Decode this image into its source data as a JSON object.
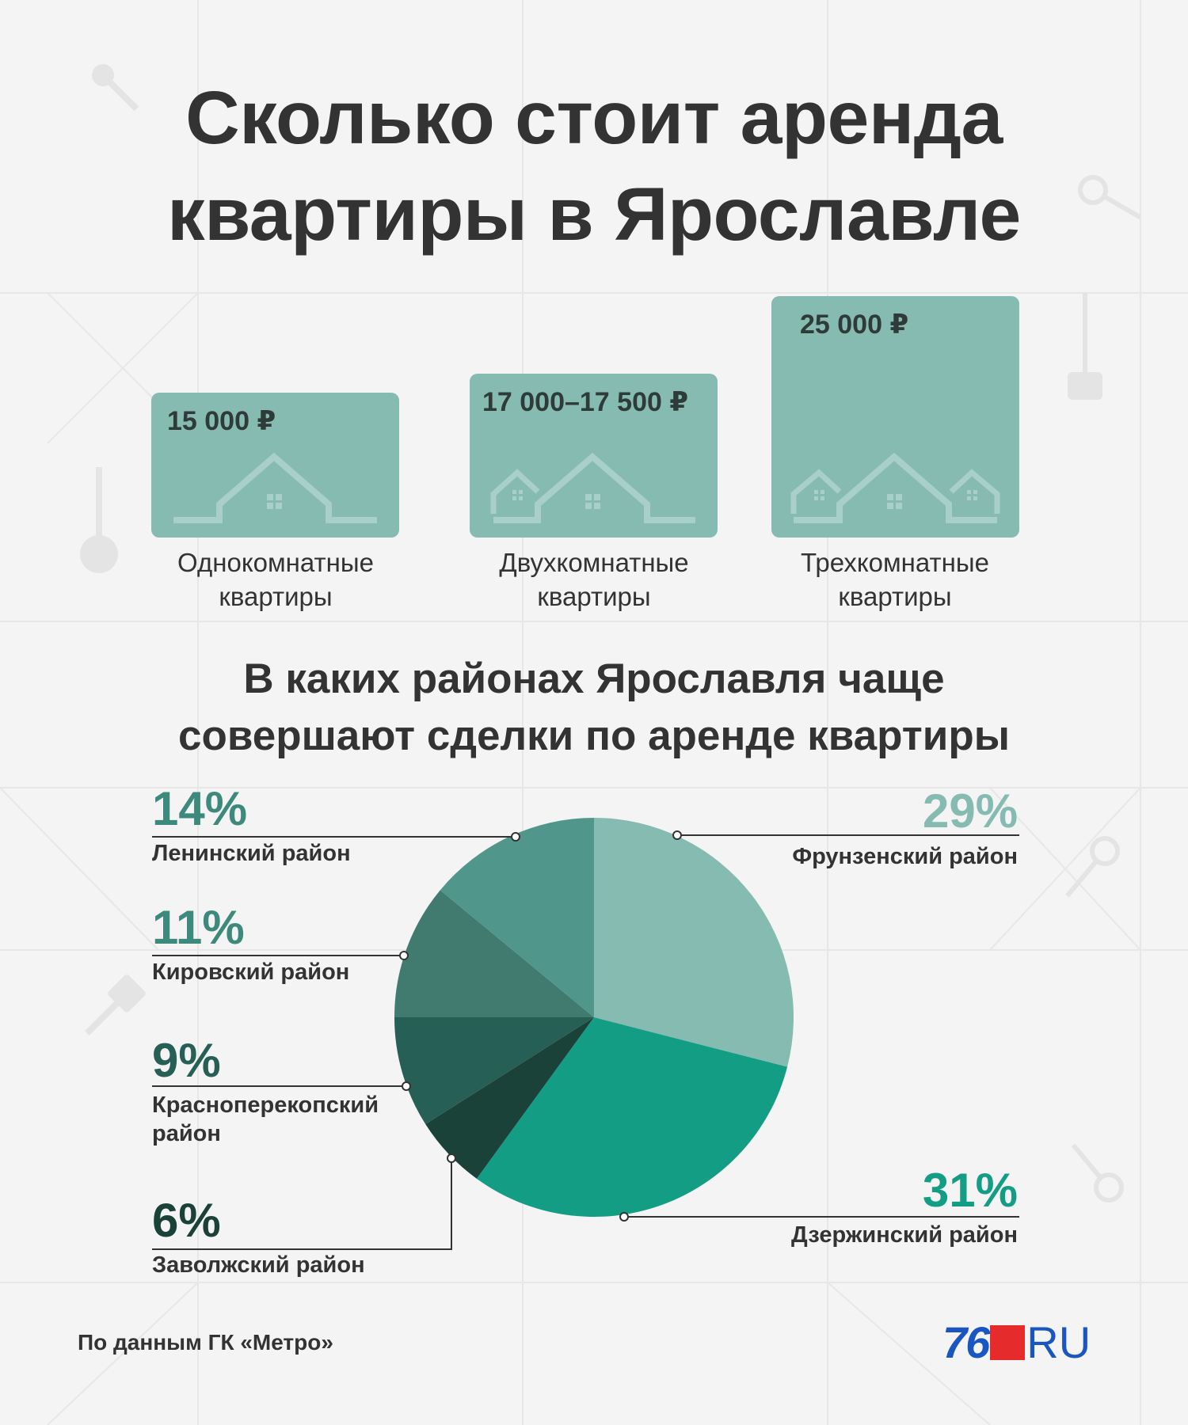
{
  "title_line1": "Сколько стоит аренда",
  "title_line2": "квартиры в Ярославле",
  "apartments": [
    {
      "price": "15 000 ₽",
      "caption_line1": "Однокомнатные",
      "caption_line2": "квартиры"
    },
    {
      "price": "17 000–17 500 ₽",
      "caption_line1": "Двухкомнатные",
      "caption_line2": "квартиры"
    },
    {
      "price": "25 000 ₽",
      "caption_line1": "Трехкомнатные",
      "caption_line2": "квартиры"
    }
  ],
  "subtitle_line1": "В каких районах Ярославля чаще",
  "subtitle_line2": "совершают сделки по аренде квартиры",
  "chart_data": {
    "type": "pie",
    "slices": [
      {
        "label": "Фрунзенский район",
        "value": 29,
        "display": "29%",
        "color": "#85bbb1"
      },
      {
        "label": "Дзержинский район",
        "value": 31,
        "display": "31%",
        "color": "#139d84"
      },
      {
        "label": "Заволжский район",
        "value": 6,
        "display": "6%",
        "color": "#1b4238"
      },
      {
        "label_line1": "Красноперекопский",
        "label_line2": "район",
        "value": 9,
        "display": "9%",
        "color": "#265f55"
      },
      {
        "label": "Кировский район",
        "value": 11,
        "display": "11%",
        "color": "#417b6f"
      },
      {
        "label": "Ленинский район",
        "value": 14,
        "display": "14%",
        "color": "#51968a"
      }
    ]
  },
  "colors": {
    "background": "#f4f4f4",
    "card": "#85bbb1",
    "text": "#333333",
    "label_light": "#85bbb1",
    "label_teal": "#139d84",
    "label_mid": "#3d8a7d",
    "label_dark": "#1b4238"
  },
  "source": "По данным ГК «Метро»",
  "logo": {
    "number": "76",
    "suffix": "RU"
  }
}
